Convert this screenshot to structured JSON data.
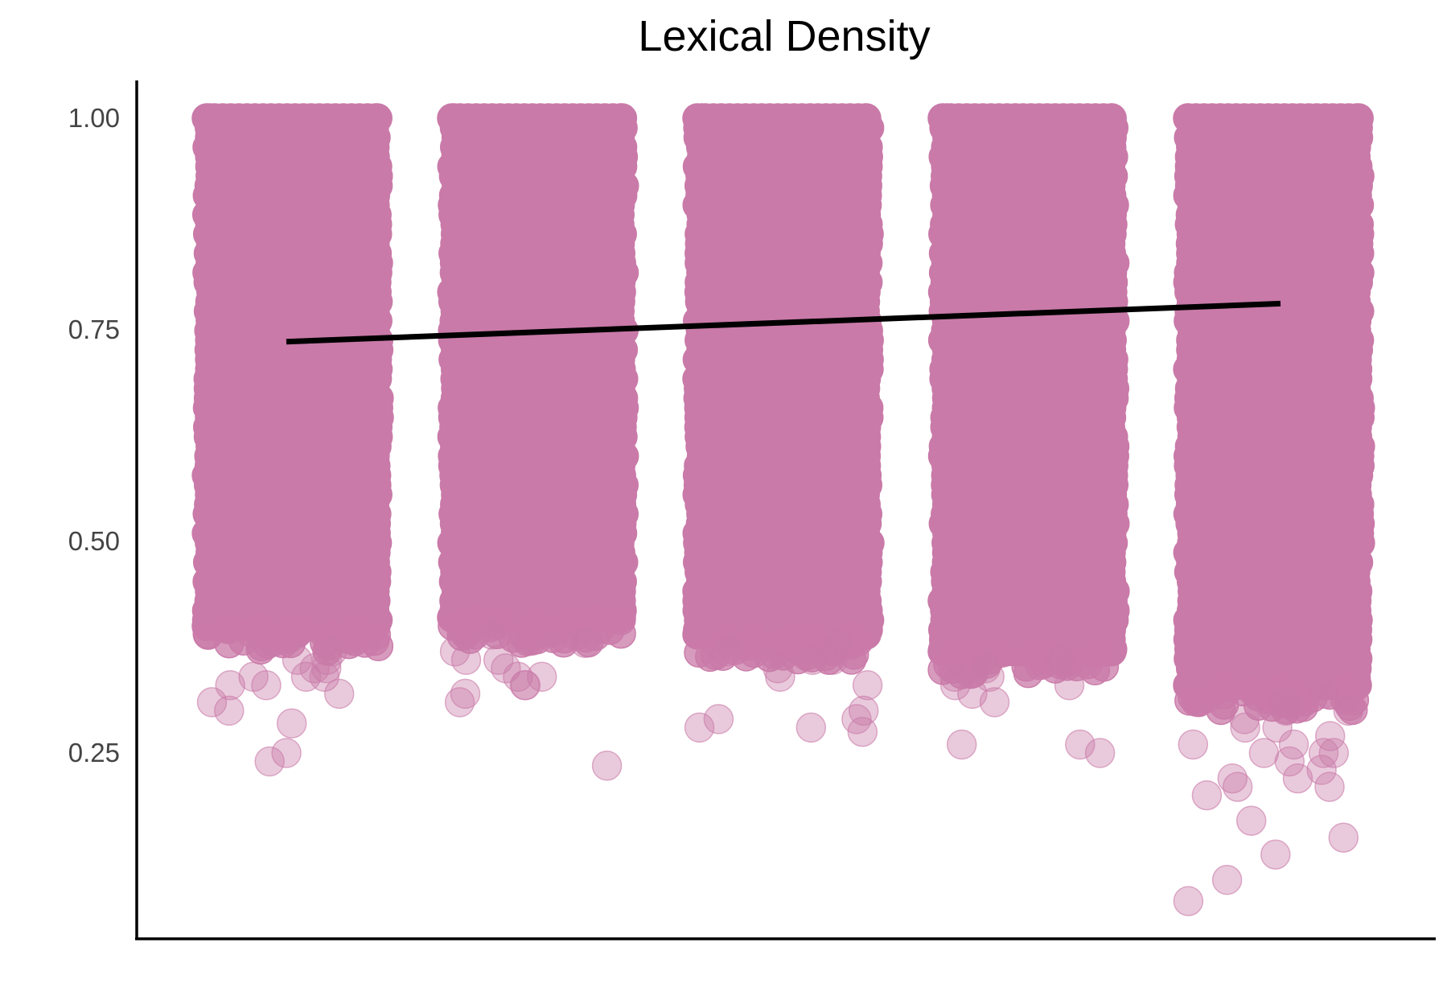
{
  "chart_data": {
    "type": "scatter",
    "title": "Lexical Density",
    "xlabel": "",
    "ylabel": "",
    "ylim": [
      0.06,
      1.05
    ],
    "yticks": [
      0.25,
      0.5,
      0.75,
      1.0
    ],
    "ytick_labels": [
      "0.25",
      "0.50",
      "0.75",
      "1.00"
    ],
    "grid": false,
    "legend": "none",
    "point_color": "#c97aa8",
    "trend_color": "#000000",
    "groups": [
      {
        "index": 1,
        "dense_band": [
          0.4,
          1.0
        ],
        "outliers": [
          0.37,
          0.36,
          0.35,
          0.34,
          0.34,
          0.33,
          0.32,
          0.31,
          0.3,
          0.285,
          0.25,
          0.24,
          0.36,
          0.35,
          0.34,
          0.33
        ]
      },
      {
        "index": 2,
        "dense_band": [
          0.41,
          1.0
        ],
        "outliers": [
          0.39,
          0.38,
          0.37,
          0.36,
          0.35,
          0.34,
          0.33,
          0.33,
          0.32,
          0.31,
          0.235,
          0.36,
          0.34
        ]
      },
      {
        "index": 3,
        "dense_band": [
          0.39,
          1.0
        ],
        "outliers": [
          0.38,
          0.37,
          0.36,
          0.35,
          0.34,
          0.33,
          0.3,
          0.29,
          0.28,
          0.275,
          0.29,
          0.28,
          0.36
        ]
      },
      {
        "index": 4,
        "dense_band": [
          0.37,
          1.0
        ],
        "outliers": [
          0.36,
          0.35,
          0.34,
          0.33,
          0.32,
          0.31,
          0.26,
          0.26,
          0.25,
          0.34,
          0.33
        ]
      },
      {
        "index": 5,
        "dense_band": [
          0.33,
          1.0
        ],
        "outliers": [
          0.32,
          0.31,
          0.3,
          0.29,
          0.28,
          0.27,
          0.26,
          0.25,
          0.25,
          0.24,
          0.23,
          0.22,
          0.21,
          0.2,
          0.17,
          0.15,
          0.13,
          0.1,
          0.075,
          0.3,
          0.28,
          0.26,
          0.25,
          0.22,
          0.21
        ]
      }
    ],
    "trend_line": {
      "x": [
        1,
        5
      ],
      "y": [
        0.736,
        0.781
      ]
    }
  }
}
